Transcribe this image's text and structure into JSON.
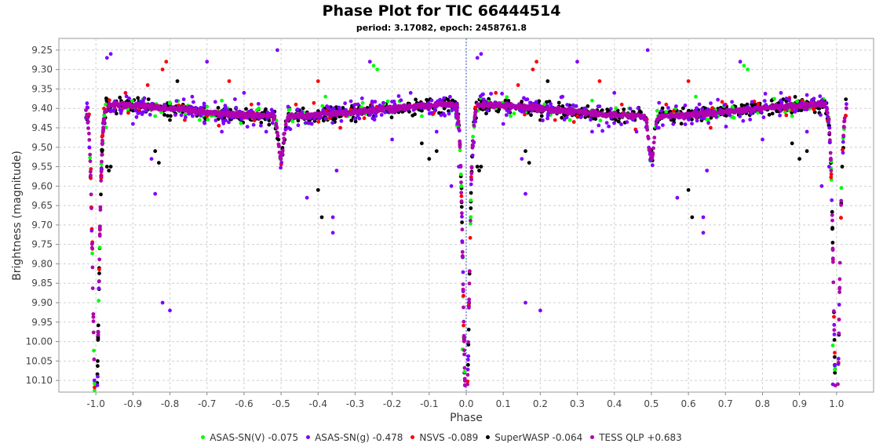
{
  "chart_data": {
    "type": "scatter",
    "title": "Phase Plot for TIC 66444514",
    "subtitle": "period: 3.17082, epoch: 2458761.8",
    "xlabel": "Phase",
    "ylabel": "Brightness (magnitude)",
    "xlim": [
      -1.1,
      1.1
    ],
    "ylim": [
      10.13,
      9.22
    ],
    "y_inverted": true,
    "grid": true,
    "legend_position": "bottom",
    "x_ticks": [
      "-1.0",
      "-0.9",
      "-0.8",
      "-0.7",
      "-0.6",
      "-0.5",
      "-0.4",
      "-0.3",
      "-0.2",
      "-0.1",
      "0.0",
      "0.1",
      "0.2",
      "0.3",
      "0.4",
      "0.5",
      "0.6",
      "0.7",
      "0.8",
      "0.9",
      "1.0"
    ],
    "y_ticks": [
      "9.25",
      "9.30",
      "9.35",
      "9.40",
      "9.45",
      "9.50",
      "9.55",
      "9.60",
      "9.65",
      "9.70",
      "9.75",
      "9.80",
      "9.85",
      "9.90",
      "9.95",
      "10.00",
      "10.05",
      "10.10"
    ],
    "series": [
      {
        "name": "ASAS-SN(V) -0.075",
        "color": "#00ff00",
        "points": [
          [
            -0.92,
            9.39
          ],
          [
            -0.88,
            9.41
          ],
          [
            -0.84,
            9.42
          ],
          [
            -0.78,
            9.4
          ],
          [
            -0.72,
            9.43
          ],
          [
            -0.66,
            9.38
          ],
          [
            -0.6,
            9.42
          ],
          [
            -0.56,
            9.4
          ],
          [
            -0.44,
            9.41
          ],
          [
            -0.38,
            9.37
          ],
          [
            -0.32,
            9.42
          ],
          [
            -0.25,
            9.29
          ],
          [
            -0.24,
            9.3
          ],
          [
            -0.18,
            9.4
          ],
          [
            -0.12,
            9.42
          ],
          [
            -0.06,
            9.39
          ],
          [
            0.08,
            9.4
          ],
          [
            0.12,
            9.42
          ],
          [
            0.16,
            9.41
          ],
          [
            0.22,
            9.4
          ],
          [
            0.28,
            9.43
          ],
          [
            0.34,
            9.38
          ],
          [
            0.4,
            9.42
          ],
          [
            0.44,
            9.4
          ],
          [
            0.56,
            9.41
          ],
          [
            0.62,
            9.37
          ],
          [
            0.68,
            9.42
          ],
          [
            0.75,
            9.29
          ],
          [
            0.76,
            9.3
          ],
          [
            0.82,
            9.4
          ],
          [
            0.88,
            9.42
          ],
          [
            0.94,
            9.39
          ],
          [
            0.99,
            10.01
          ],
          [
            -0.01,
            10.02
          ]
        ]
      },
      {
        "name": "ASAS-SN(g) -0.478",
        "color": "#7f00ff",
        "points": [
          [
            -0.96,
            9.26
          ],
          [
            -0.97,
            9.27
          ],
          [
            -0.9,
            9.44
          ],
          [
            -0.85,
            9.53
          ],
          [
            -0.84,
            9.62
          ],
          [
            -0.82,
            9.9
          ],
          [
            -0.8,
            9.92
          ],
          [
            -0.74,
            9.37
          ],
          [
            -0.7,
            9.28
          ],
          [
            -0.66,
            9.46
          ],
          [
            -0.6,
            9.36
          ],
          [
            -0.54,
            9.46
          ],
          [
            -0.51,
            9.25
          ],
          [
            -0.48,
            9.45
          ],
          [
            -0.43,
            9.63
          ],
          [
            -0.36,
            9.68
          ],
          [
            -0.36,
            9.72
          ],
          [
            -0.35,
            9.56
          ],
          [
            -0.26,
            9.28
          ],
          [
            -0.2,
            9.48
          ],
          [
            -0.15,
            9.36
          ],
          [
            -0.08,
            9.46
          ],
          [
            -0.04,
            9.6
          ],
          [
            -0.02,
            9.55
          ],
          [
            0.04,
            9.26
          ],
          [
            0.03,
            9.27
          ],
          [
            0.1,
            9.44
          ],
          [
            0.15,
            9.53
          ],
          [
            0.16,
            9.62
          ],
          [
            0.16,
            9.9
          ],
          [
            0.2,
            9.92
          ],
          [
            0.26,
            9.37
          ],
          [
            0.3,
            9.28
          ],
          [
            0.34,
            9.46
          ],
          [
            0.4,
            9.36
          ],
          [
            0.46,
            9.46
          ],
          [
            0.49,
            9.25
          ],
          [
            0.52,
            9.45
          ],
          [
            0.57,
            9.63
          ],
          [
            0.64,
            9.68
          ],
          [
            0.64,
            9.72
          ],
          [
            0.65,
            9.56
          ],
          [
            0.74,
            9.28
          ],
          [
            0.8,
            9.48
          ],
          [
            0.85,
            9.36
          ],
          [
            0.92,
            9.46
          ],
          [
            0.96,
            9.6
          ],
          [
            0.98,
            9.55
          ],
          [
            -0.995,
            10.09
          ],
          [
            0.99,
            10.11
          ]
        ]
      },
      {
        "name": "NSVS -0.089",
        "color": "#ff0000",
        "points": [
          [
            -0.81,
            9.28
          ],
          [
            -0.82,
            9.3
          ],
          [
            -0.92,
            9.36
          ],
          [
            -0.86,
            9.34
          ],
          [
            -0.76,
            9.43
          ],
          [
            -0.7,
            9.42
          ],
          [
            -0.64,
            9.33
          ],
          [
            -0.58,
            9.39
          ],
          [
            -0.46,
            9.39
          ],
          [
            -0.4,
            9.33
          ],
          [
            -0.34,
            9.45
          ],
          [
            -0.3,
            9.39
          ],
          [
            -0.14,
            9.4
          ],
          [
            0.19,
            9.28
          ],
          [
            0.18,
            9.3
          ],
          [
            0.08,
            9.36
          ],
          [
            0.14,
            9.34
          ],
          [
            0.24,
            9.43
          ],
          [
            0.3,
            9.42
          ],
          [
            0.36,
            9.33
          ],
          [
            0.42,
            9.39
          ],
          [
            0.54,
            9.39
          ],
          [
            0.6,
            9.33
          ],
          [
            0.66,
            9.45
          ],
          [
            0.7,
            9.39
          ],
          [
            0.86,
            9.4
          ]
        ]
      },
      {
        "name": "SuperWASP -0.064",
        "color": "#000000",
        "points": [
          [
            -0.97,
            9.55
          ],
          [
            -0.965,
            9.56
          ],
          [
            -0.96,
            9.55
          ],
          [
            -0.84,
            9.51
          ],
          [
            -0.83,
            9.54
          ],
          [
            -0.78,
            9.33
          ],
          [
            -0.8,
            9.43
          ],
          [
            -0.4,
            9.61
          ],
          [
            -0.39,
            9.68
          ],
          [
            -0.1,
            9.53
          ],
          [
            -0.12,
            9.49
          ],
          [
            -0.08,
            9.51
          ],
          [
            0.03,
            9.55
          ],
          [
            0.035,
            9.56
          ],
          [
            0.04,
            9.55
          ],
          [
            0.16,
            9.51
          ],
          [
            0.17,
            9.54
          ],
          [
            0.22,
            9.33
          ],
          [
            0.2,
            9.43
          ],
          [
            0.6,
            9.61
          ],
          [
            0.61,
            9.68
          ],
          [
            0.9,
            9.53
          ],
          [
            0.88,
            9.49
          ],
          [
            0.92,
            9.51
          ],
          [
            -0.995,
            10.05
          ],
          [
            0.995,
            10.06
          ],
          [
            -0.005,
            10.08
          ],
          [
            0.005,
            10.06
          ]
        ]
      },
      {
        "name": "TESS QLP +0.683",
        "color": "#b000b0",
        "points": []
      }
    ]
  }
}
